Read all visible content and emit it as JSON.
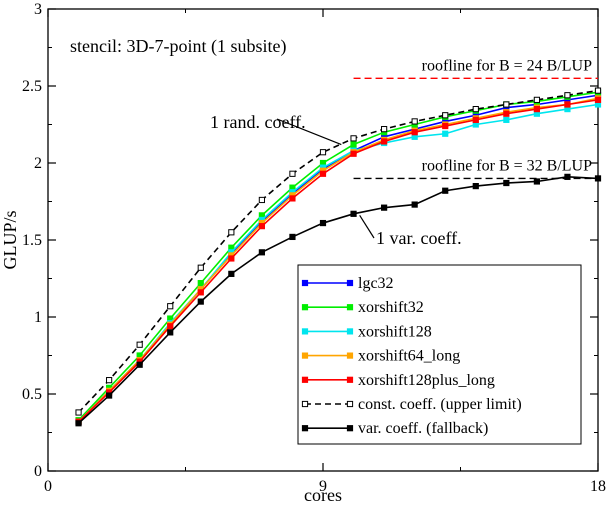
{
  "chart_data": {
    "type": "line",
    "title": "",
    "xlabel": "cores",
    "ylabel": "GLUP/s",
    "xlim": [
      0,
      18
    ],
    "ylim": [
      0,
      3
    ],
    "xticks": [
      0,
      9,
      18
    ],
    "yticks": [
      0,
      0.5,
      1,
      1.5,
      2,
      2.5,
      3
    ],
    "grid": false,
    "legend_position": "bottom-right",
    "x": [
      1,
      2,
      3,
      4,
      5,
      6,
      7,
      8,
      9,
      10,
      11,
      12,
      13,
      14,
      15,
      16,
      17,
      18
    ],
    "series": [
      {
        "name": "lgc32",
        "color": "#0000ff",
        "line": "solid",
        "marker": "square-filled",
        "values": [
          0.32,
          0.52,
          0.72,
          0.95,
          1.18,
          1.41,
          1.62,
          1.8,
          1.96,
          2.08,
          2.17,
          2.22,
          2.27,
          2.31,
          2.36,
          2.38,
          2.41,
          2.44
        ]
      },
      {
        "name": "xorshift32",
        "color": "#00ee00",
        "line": "solid",
        "marker": "square-filled",
        "values": [
          0.33,
          0.54,
          0.75,
          0.99,
          1.22,
          1.45,
          1.66,
          1.84,
          2.0,
          2.12,
          2.2,
          2.25,
          2.3,
          2.34,
          2.38,
          2.4,
          2.43,
          2.46
        ]
      },
      {
        "name": "xorshift128",
        "color": "#00e5ee",
        "line": "solid",
        "marker": "square-filled",
        "values": [
          0.32,
          0.52,
          0.72,
          0.96,
          1.18,
          1.42,
          1.63,
          1.81,
          1.97,
          2.08,
          2.13,
          2.17,
          2.19,
          2.25,
          2.28,
          2.32,
          2.35,
          2.38
        ]
      },
      {
        "name": "xorshift64_long",
        "color": "#ffa500",
        "line": "solid",
        "marker": "square-filled",
        "values": [
          0.32,
          0.52,
          0.72,
          0.95,
          1.18,
          1.4,
          1.61,
          1.79,
          1.95,
          2.07,
          2.15,
          2.21,
          2.25,
          2.29,
          2.33,
          2.36,
          2.38,
          2.42
        ]
      },
      {
        "name": "xorshift128plus_long",
        "color": "#ff0000",
        "line": "solid",
        "marker": "square-filled",
        "values": [
          0.32,
          0.51,
          0.71,
          0.94,
          1.16,
          1.38,
          1.59,
          1.77,
          1.93,
          2.06,
          2.14,
          2.2,
          2.24,
          2.28,
          2.32,
          2.35,
          2.38,
          2.41
        ]
      },
      {
        "name": "const. coeff. (upper limit)",
        "color": "#000000",
        "line": "dashed",
        "marker": "square-open",
        "values": [
          0.38,
          0.59,
          0.82,
          1.07,
          1.32,
          1.55,
          1.76,
          1.93,
          2.07,
          2.16,
          2.22,
          2.27,
          2.31,
          2.35,
          2.38,
          2.41,
          2.44,
          2.47
        ]
      },
      {
        "name": "var. coeff. (fallback)",
        "color": "#000000",
        "line": "solid",
        "marker": "square-filled",
        "values": [
          0.31,
          0.49,
          0.69,
          0.9,
          1.1,
          1.28,
          1.42,
          1.52,
          1.61,
          1.67,
          1.71,
          1.73,
          1.82,
          1.85,
          1.87,
          1.88,
          1.91,
          1.9
        ]
      }
    ],
    "rooflines": [
      {
        "label": "roofline for B = 24 B/LUP",
        "value": 2.55,
        "x_from": 10,
        "x_to": 18,
        "color": "#ff0000"
      },
      {
        "label": "roofline for B = 32 B/LUP",
        "value": 1.9,
        "x_from": 10,
        "x_to": 18,
        "color": "#000000"
      }
    ],
    "annotations": {
      "stencil": "stencil: 3D-7-point (1 subsite)",
      "rand": "1 rand. coeff.",
      "var": "1 var. coeff."
    }
  }
}
